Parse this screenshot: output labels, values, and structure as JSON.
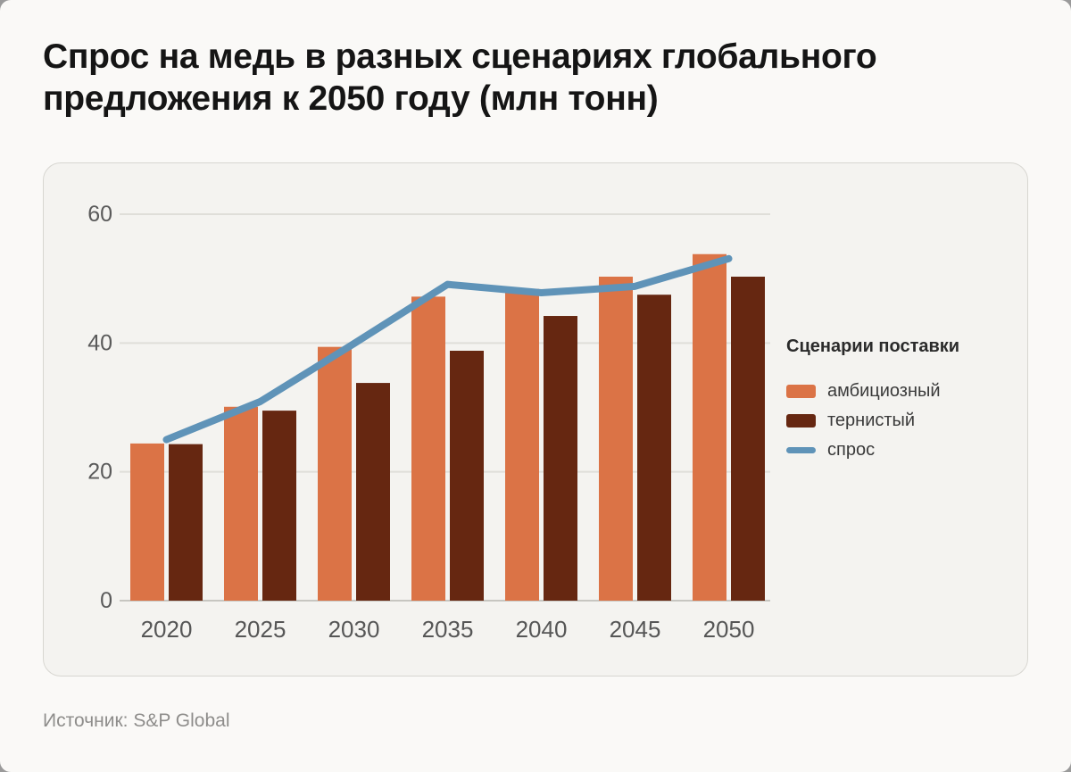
{
  "page": {
    "title": "Спрос на медь в разных сценариях глобального предложения к 2050 году (млн тонн)",
    "source": "Источник: S&P Global"
  },
  "legend": {
    "title": "Сценарии поставки",
    "items": [
      {
        "label": "амбициозный",
        "color": "#DB7346",
        "type": "bar"
      },
      {
        "label": "тернистый",
        "color": "#662711",
        "type": "bar"
      },
      {
        "label": "спрос",
        "color": "#5F93B8",
        "type": "line"
      }
    ]
  },
  "chart_data": {
    "type": "bar",
    "title": "Спрос на медь в разных сценариях глобального предложения к 2050 году (млн тонн)",
    "xlabel": "",
    "ylabel": "",
    "categories": [
      "2020",
      "2025",
      "2030",
      "2035",
      "2040",
      "2045",
      "2050"
    ],
    "series": [
      {
        "name": "амбициозный",
        "type": "bar",
        "color": "#DB7346",
        "values": [
          24.4,
          30.1,
          39.4,
          47.2,
          48.4,
          50.3,
          53.8
        ]
      },
      {
        "name": "тернистый",
        "type": "bar",
        "color": "#662711",
        "values": [
          24.3,
          29.5,
          33.8,
          38.8,
          44.2,
          47.5,
          50.3
        ]
      },
      {
        "name": "спрос",
        "type": "line",
        "color": "#5F93B8",
        "values": [
          25.0,
          30.9,
          39.9,
          49.1,
          47.8,
          48.8,
          53.1
        ]
      }
    ],
    "ylim": [
      0,
      60
    ],
    "yticks": [
      0,
      20,
      40,
      60
    ],
    "grid": true,
    "legend_position": "right",
    "colors": {
      "grid_line": "#DFDED9",
      "axis_line": "#C7C6C1",
      "tick_label": "#5A5A5A",
      "x_label": "#565656",
      "card_bg": "#F4F3F0",
      "page_bg": "#FAF9F7"
    }
  }
}
